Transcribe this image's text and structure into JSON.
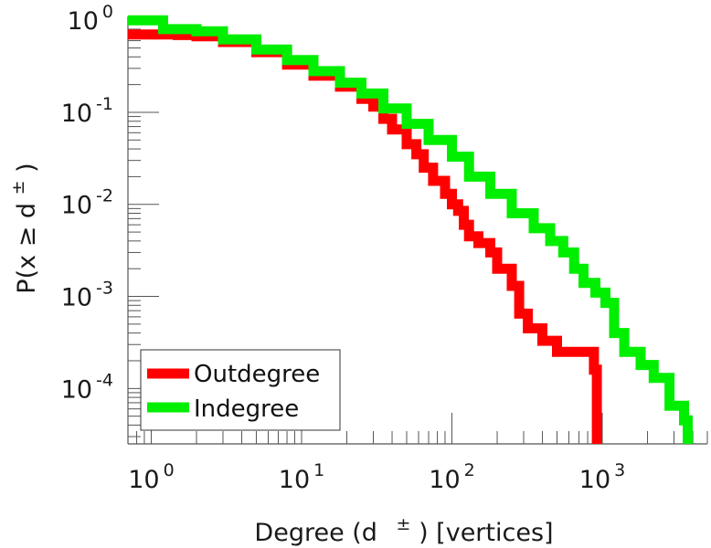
{
  "chart_data": {
    "type": "line",
    "scale": "log-log",
    "title": "",
    "xlabel": "Degree (d ±) [vertices]",
    "xlabel_parts": {
      "pre": "Degree (d",
      "sup": "±",
      "post": ") [vertices]"
    },
    "ylabel": "P(x ≥ d±)",
    "ylabel_parts": {
      "pre": "P(x ≥ d",
      "sup": "±",
      "post": ")"
    },
    "xlim": [
      0.7,
      5000
    ],
    "ylim": [
      2.5e-05,
      1.1
    ],
    "x_ticks": [
      {
        "value": 1,
        "base": "10",
        "exp": "0"
      },
      {
        "value": 10,
        "base": "10",
        "exp": "1"
      },
      {
        "value": 100,
        "base": "10",
        "exp": "2"
      },
      {
        "value": 1000,
        "base": "10",
        "exp": "3"
      }
    ],
    "y_ticks": [
      {
        "value": 1,
        "base": "10",
        "exp": "0"
      },
      {
        "value": 0.1,
        "base": "10",
        "exp": "-1"
      },
      {
        "value": 0.01,
        "base": "10",
        "exp": "-2"
      },
      {
        "value": 0.001,
        "base": "10",
        "exp": "-3"
      },
      {
        "value": 0.0001,
        "base": "10",
        "exp": "-4"
      }
    ],
    "legend": {
      "position": "bottom-left"
    },
    "series": [
      {
        "name": "Outdegree",
        "color": "#ff0000",
        "points": [
          [
            0.7,
            0.7
          ],
          [
            1,
            0.7
          ],
          [
            1.5,
            0.69
          ],
          [
            2,
            0.67
          ],
          [
            3,
            0.58
          ],
          [
            5,
            0.45
          ],
          [
            8,
            0.33
          ],
          [
            12,
            0.25
          ],
          [
            18,
            0.19
          ],
          [
            25,
            0.14
          ],
          [
            30,
            0.115
          ],
          [
            35,
            0.085
          ],
          [
            40,
            0.065
          ],
          [
            50,
            0.045
          ],
          [
            58,
            0.035
          ],
          [
            65,
            0.025
          ],
          [
            75,
            0.018
          ],
          [
            90,
            0.013
          ],
          [
            100,
            0.01
          ],
          [
            110,
            0.0085
          ],
          [
            120,
            0.006
          ],
          [
            130,
            0.0045
          ],
          [
            150,
            0.0038
          ],
          [
            180,
            0.003
          ],
          [
            200,
            0.002
          ],
          [
            250,
            0.0013
          ],
          [
            280,
            0.00065
          ],
          [
            320,
            0.00045
          ],
          [
            400,
            0.00033
          ],
          [
            500,
            0.00025
          ],
          [
            600,
            0.00025
          ],
          [
            800,
            0.00025
          ],
          [
            880,
            0.00016
          ],
          [
            920,
            2.5e-05
          ]
        ]
      },
      {
        "name": "Indegree",
        "color": "#00ee00",
        "points": [
          [
            0.7,
            1.0
          ],
          [
            1.1,
            1.0
          ],
          [
            1.2,
            0.8
          ],
          [
            2,
            0.76
          ],
          [
            3,
            0.62
          ],
          [
            5,
            0.48
          ],
          [
            8,
            0.37
          ],
          [
            12,
            0.28
          ],
          [
            18,
            0.21
          ],
          [
            25,
            0.16
          ],
          [
            35,
            0.11
          ],
          [
            50,
            0.075
          ],
          [
            70,
            0.05
          ],
          [
            100,
            0.033
          ],
          [
            130,
            0.02
          ],
          [
            180,
            0.013
          ],
          [
            250,
            0.008
          ],
          [
            350,
            0.0055
          ],
          [
            450,
            0.004
          ],
          [
            550,
            0.003
          ],
          [
            650,
            0.002
          ],
          [
            750,
            0.0014
          ],
          [
            900,
            0.0011
          ],
          [
            1050,
            0.00085
          ],
          [
            1200,
            0.0004
          ],
          [
            1400,
            0.00025
          ],
          [
            1800,
            0.00018
          ],
          [
            2200,
            0.00013
          ],
          [
            2800,
            6.5e-05
          ],
          [
            3500,
            4.5e-05
          ],
          [
            3700,
            2.5e-05
          ]
        ]
      }
    ]
  }
}
